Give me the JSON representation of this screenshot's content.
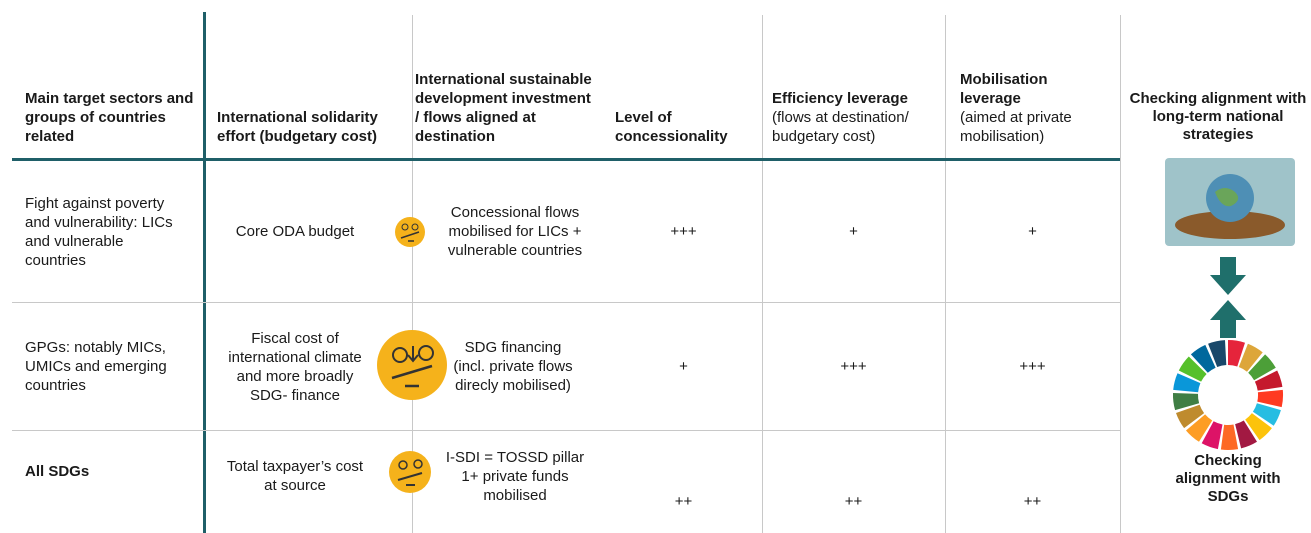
{
  "table": {
    "header": [
      {
        "title": "Main target sectors and groups of countries related"
      },
      {
        "title": "International solidarity effort (budgetary cost)"
      },
      {
        "title": "International sustainable development investment / flows aligned at destination"
      },
      {
        "title": "Level of concessionality"
      },
      {
        "title": "Efficiency leverage",
        "note": "(flows at destination/ budgetary cost)"
      },
      {
        "title": "Mobilisation leverage",
        "note": "(aimed at private mobilisation)"
      }
    ],
    "rows": [
      [
        "Fight against poverty and vulnerability: LICs and vulnerable countries",
        "Core ODA budget",
        "Concessional flows mobilised for LICs + vulnerable countries",
        "+++",
        "+",
        "+"
      ],
      [
        "GPGs: notably MICs, UMICs and emerging countries",
        "Fiscal cost of international climate and more broadly SDG- finance",
        "SDG financing (incl. private flows direcly mobilised)",
        "+",
        "+++",
        "+++"
      ],
      [
        "All SDGs",
        "Total taxpayer’s cost at source",
        "I-SDI  = TOSSD pillar 1+ private funds mobilised",
        "++",
        "++",
        "++"
      ]
    ]
  },
  "side": {
    "top_label": "Checking alignment with long-term national strategies",
    "bottom_label": "Checking alignment with SDGs"
  }
}
